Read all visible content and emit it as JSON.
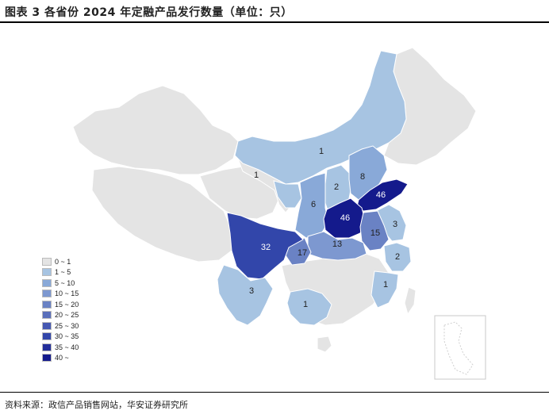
{
  "title": "图表 3  各省份 2024 年定融产品发行数量（单位：只）",
  "source": "资料来源：政信产品销售网站，华安证券研究所",
  "colors": {
    "base_gray": "#e4e4e4",
    "c1_5": "#a7c4e2",
    "c5_10": "#89a9d8",
    "c10_15": "#7d98d0",
    "c15_20": "#6a82c4",
    "c30_35": "#3246aa",
    "c40": "#141a8c",
    "border": "#ffffff"
  },
  "legend": [
    {
      "label": "0 ~ 1",
      "color": "#e4e4e4"
    },
    {
      "label": "1 ~ 5",
      "color": "#a7c4e2"
    },
    {
      "label": "5 ~ 10",
      "color": "#89a9d8"
    },
    {
      "label": "10 ~ 15",
      "color": "#7d98d0"
    },
    {
      "label": "15 ~ 20",
      "color": "#6a82c4"
    },
    {
      "label": "20 ~ 25",
      "color": "#5a6fbb"
    },
    {
      "label": "25 ~ 30",
      "color": "#4558b2"
    },
    {
      "label": "30 ~ 35",
      "color": "#3246aa"
    },
    {
      "label": "35 ~ 40",
      "color": "#232e9a"
    },
    {
      "label": "40 ~",
      "color": "#141a8c"
    }
  ],
  "region_values": {
    "inner_mongolia": "1",
    "ningxia": "1",
    "shanxi": "2",
    "hebei": "8",
    "shandong": "46",
    "henan": "46",
    "shaanxi": "6",
    "jiangsu": "3",
    "anhui": "15",
    "hubei": "13",
    "sichuan": "32",
    "chongqing": "17",
    "zhejiang": "2",
    "fujian": "1",
    "yunnan": "3",
    "guangxi": "1"
  }
}
